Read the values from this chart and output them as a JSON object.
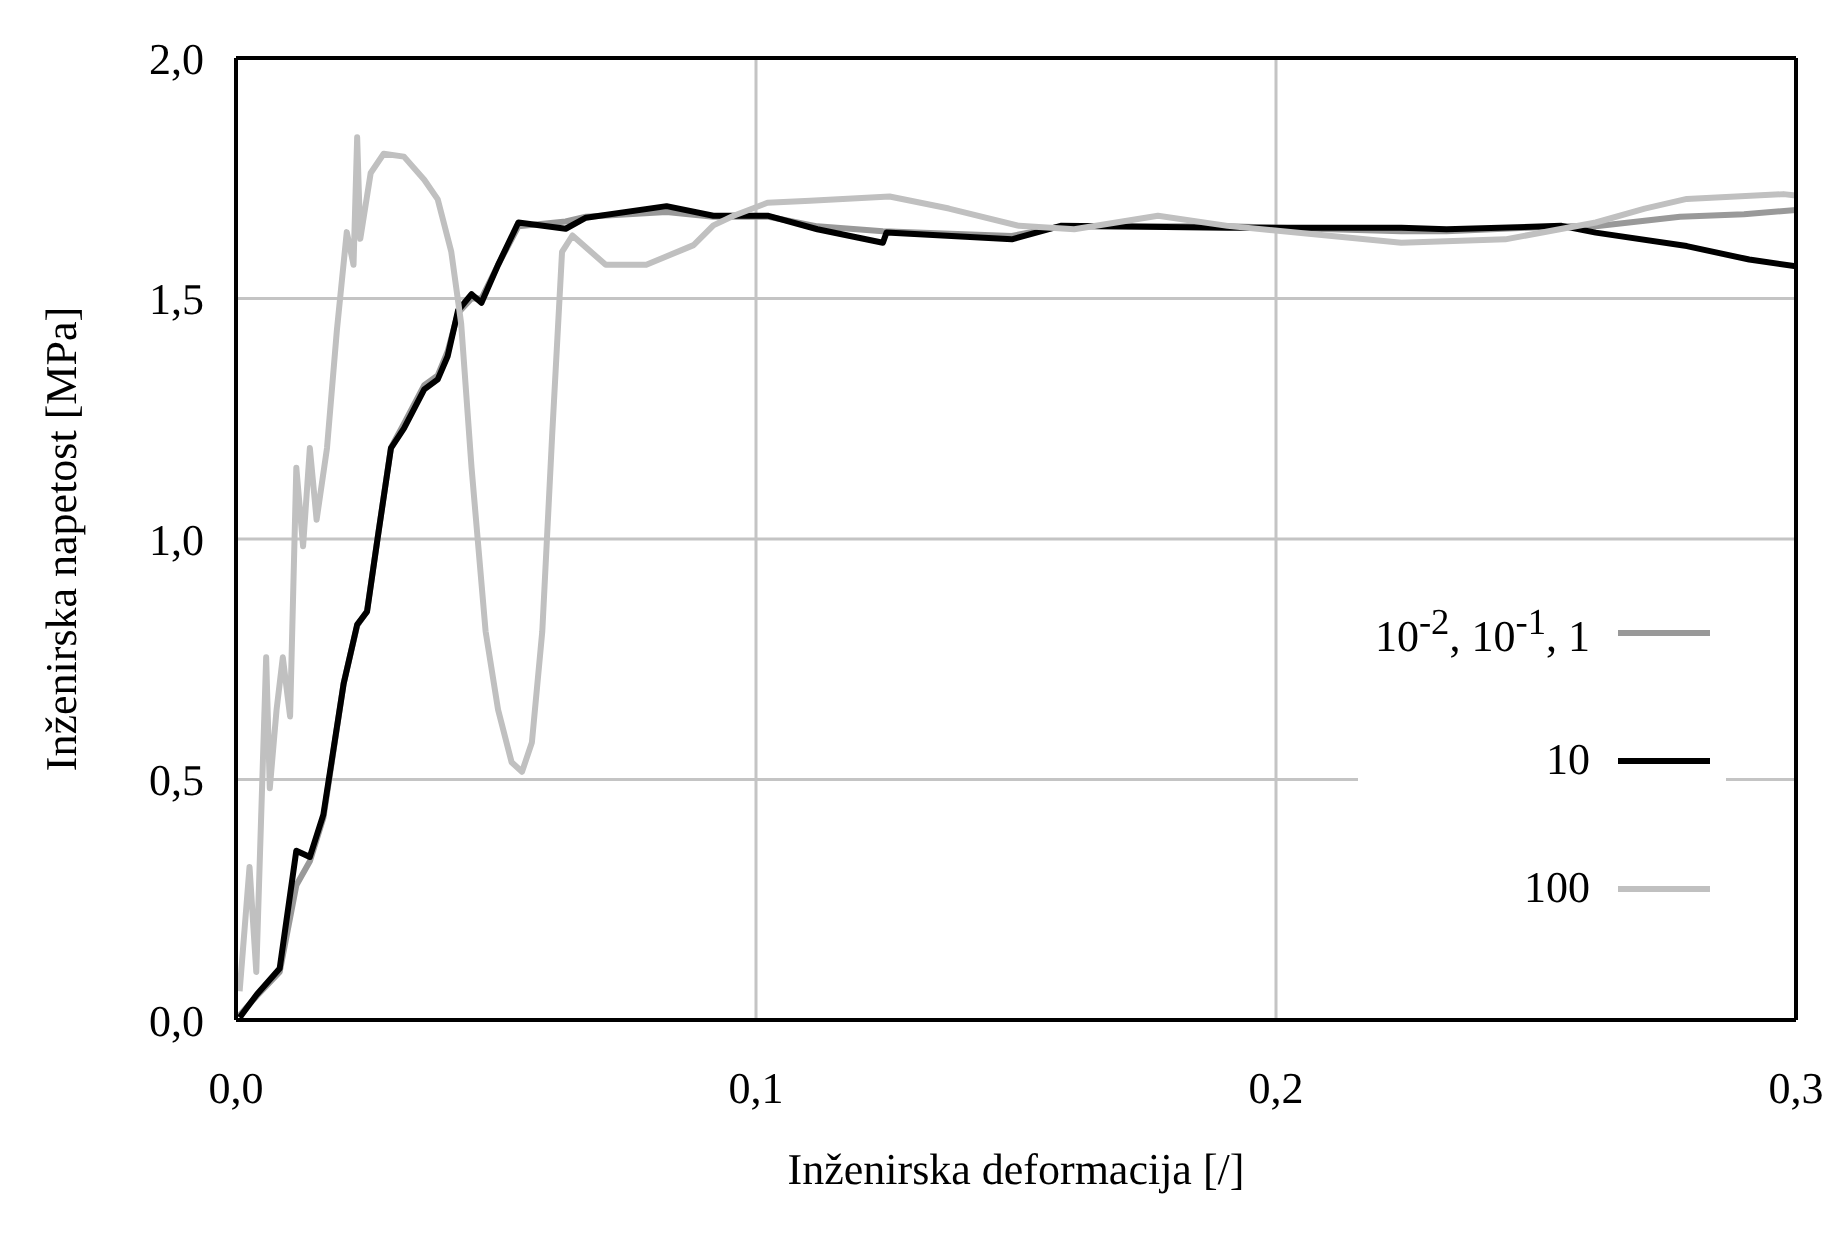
{
  "chart_data": {
    "type": "line",
    "xlabel": "Inženirska deformacija [/]",
    "ylabel": "Inženirska napetost [MPa]",
    "xlim": [
      0,
      0.3
    ],
    "xticks": [
      {
        "value": 0,
        "label": "0,0"
      },
      {
        "value": 0.1,
        "label": "0,1"
      },
      {
        "value": 0.2,
        "label": "0,2"
      },
      {
        "value": 0.3,
        "label": "0,3"
      }
    ],
    "ylim": [
      0,
      2
    ],
    "yticks": [
      {
        "value": 0,
        "label": "0,0"
      },
      {
        "value": 0.5,
        "label": "0,5"
      },
      {
        "value": 1,
        "label": "1,0"
      },
      {
        "value": 1.5,
        "label": "1,5"
      },
      {
        "value": 2,
        "label": "2,0"
      }
    ],
    "grid": true,
    "legend": "right",
    "marker": "none",
    "line_style": "solid",
    "series": [
      {
        "name": "10$^{-2}$, 10$^{-1}$, 1",
        "color": "#999999",
        "x": [
          0.0007,
          0.004,
          0.0084,
          0.0116,
          0.0142,
          0.0168,
          0.0207,
          0.0233,
          0.0252,
          0.0272,
          0.0298,
          0.0323,
          0.0362,
          0.0388,
          0.0407,
          0.0427,
          0.0453,
          0.0472,
          0.0504,
          0.0543,
          0.0634,
          0.0673,
          0.0828,
          0.0918,
          0.1024,
          0.1118,
          0.1244,
          0.1492,
          0.1586,
          0.1907,
          0.2241,
          0.2328,
          0.2549,
          0.2615,
          0.2777,
          0.29,
          0.3
        ],
        "values": [
          0.01,
          0.05,
          0.1,
          0.28,
          0.33,
          0.42,
          0.7,
          0.82,
          0.85,
          1.0,
          1.19,
          1.24,
          1.32,
          1.34,
          1.39,
          1.47,
          1.5,
          1.5,
          1.57,
          1.65,
          1.66,
          1.67,
          1.68,
          1.67,
          1.67,
          1.65,
          1.64,
          1.63,
          1.65,
          1.65,
          1.64,
          1.64,
          1.65,
          1.65,
          1.67,
          1.675,
          1.684
        ]
      },
      {
        "name": "10",
        "color": "#000000",
        "x": [
          0.0007,
          0.004,
          0.0084,
          0.0116,
          0.0142,
          0.0168,
          0.0207,
          0.0233,
          0.0252,
          0.0272,
          0.0298,
          0.0323,
          0.0362,
          0.0388,
          0.0407,
          0.0427,
          0.0453,
          0.0472,
          0.0504,
          0.0543,
          0.0634,
          0.0673,
          0.0828,
          0.0918,
          0.1024,
          0.1118,
          0.1244,
          0.1251,
          0.1492,
          0.1586,
          0.1907,
          0.2241,
          0.2328,
          0.2549,
          0.2615,
          0.279,
          0.291,
          0.3
        ],
        "values": [
          0.005,
          0.053,
          0.107,
          0.352,
          0.339,
          0.427,
          0.699,
          0.822,
          0.849,
          0.999,
          1.189,
          1.23,
          1.311,
          1.332,
          1.38,
          1.475,
          1.509,
          1.491,
          1.57,
          1.658,
          1.645,
          1.668,
          1.692,
          1.672,
          1.672,
          1.644,
          1.616,
          1.637,
          1.623,
          1.651,
          1.647,
          1.647,
          1.644,
          1.651,
          1.637,
          1.609,
          1.581,
          1.567
        ]
      },
      {
        "name": "100",
        "color": "#c0c0c0",
        "x": [
          0.0007,
          0.0026,
          0.0039,
          0.0058,
          0.0065,
          0.0078,
          0.009,
          0.0104,
          0.0116,
          0.0129,
          0.0142,
          0.0155,
          0.0175,
          0.0194,
          0.0213,
          0.0226,
          0.0233,
          0.0239,
          0.0259,
          0.0284,
          0.0323,
          0.0362,
          0.0388,
          0.0414,
          0.0433,
          0.0453,
          0.048,
          0.0504,
          0.053,
          0.055,
          0.0569,
          0.0589,
          0.0608,
          0.0627,
          0.0647,
          0.0711,
          0.0789,
          0.088,
          0.0918,
          0.0957,
          0.1022,
          0.1104,
          0.1257,
          0.1371,
          0.1506,
          0.1612,
          0.1773,
          0.1907,
          0.2241,
          0.2441,
          0.2615,
          0.2709,
          0.279,
          0.2976,
          0.3
        ],
        "values": [
          0.06,
          0.318,
          0.1,
          0.754,
          0.482,
          0.645,
          0.754,
          0.631,
          1.148,
          0.985,
          1.189,
          1.04,
          1.189,
          1.434,
          1.638,
          1.57,
          1.835,
          1.624,
          1.761,
          1.801,
          1.795,
          1.747,
          1.706,
          1.597,
          1.448,
          1.148,
          0.808,
          0.645,
          0.536,
          0.516,
          0.577,
          0.808,
          1.216,
          1.597,
          1.631,
          1.57,
          1.57,
          1.611,
          1.652,
          1.672,
          1.699,
          1.703,
          1.712,
          1.687,
          1.651,
          1.644,
          1.672,
          1.651,
          1.616,
          1.623,
          1.658,
          1.687,
          1.707,
          1.717,
          1.714
        ]
      }
    ]
  }
}
